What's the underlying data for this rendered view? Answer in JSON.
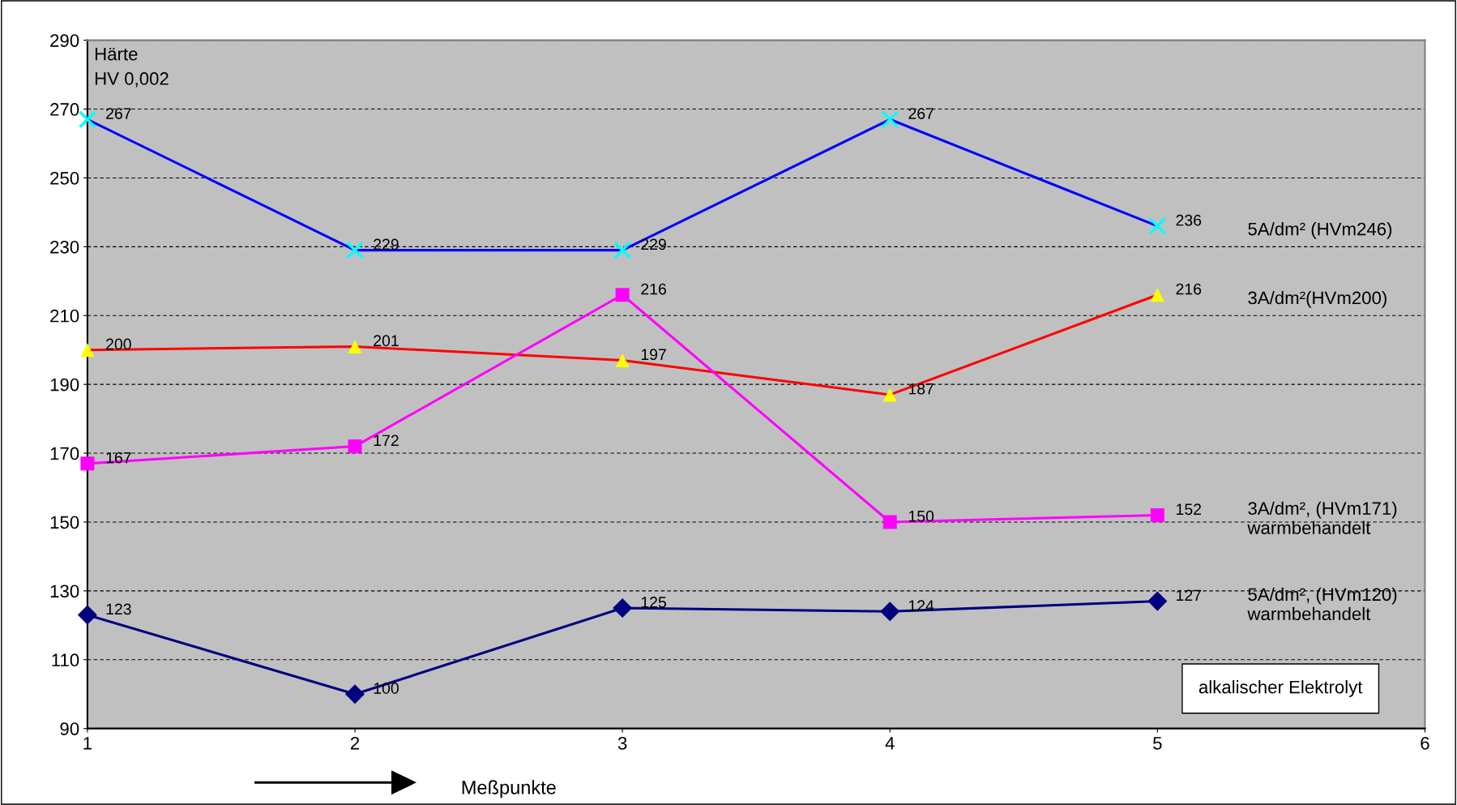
{
  "chart_data": {
    "type": "line",
    "ylabel": "Härte\nHV 0,002",
    "xlabel": "Meßpunkte",
    "x": [
      1,
      2,
      3,
      4,
      5
    ],
    "series": [
      {
        "name": "5A/dm² (HVm246)",
        "color": "#0000ff",
        "colors": [
          "#00ffff",
          "#00ffff",
          "#00ffff",
          "#00ffff",
          "#00ffff"
        ],
        "marker": "cross",
        "values": [
          267,
          229,
          229,
          267,
          236
        ]
      },
      {
        "name": "3A/dm²(HVm200)",
        "color": "#ff0000",
        "colors": [
          "#ffff00",
          "#ffff00",
          "#ffff00",
          "#ffff00",
          "#ffff00"
        ],
        "marker": "triangle",
        "values": [
          200,
          201,
          197,
          187,
          216
        ]
      },
      {
        "name": "3A/dm², (HVm171)\nwarmbehandelt",
        "color": "#ff00ff",
        "colors": [
          "#ff00ff",
          "#ff00ff",
          "#ff00ff",
          "#ff00ff",
          "#ff00ff"
        ],
        "marker": "square",
        "values": [
          167,
          172,
          216,
          150,
          152
        ]
      },
      {
        "name": "5A/dm², (HVm120)\nwarmbehandelt",
        "color": "#000080",
        "colors": [
          "#000080",
          "#000080",
          "#000080",
          "#000080",
          "#000080"
        ],
        "marker": "diamond",
        "values": [
          123,
          100,
          125,
          124,
          127
        ]
      }
    ],
    "xlim": [
      1,
      6
    ],
    "xticks": [
      1,
      2,
      3,
      4,
      5,
      6
    ],
    "ylim": [
      90,
      290
    ],
    "yticks": [
      90,
      110,
      130,
      150,
      170,
      190,
      210,
      230,
      250,
      270,
      290
    ],
    "grid": "y",
    "legend": false,
    "data_labels": true,
    "annotations": [
      "alkalischer Elektrolyt"
    ]
  }
}
